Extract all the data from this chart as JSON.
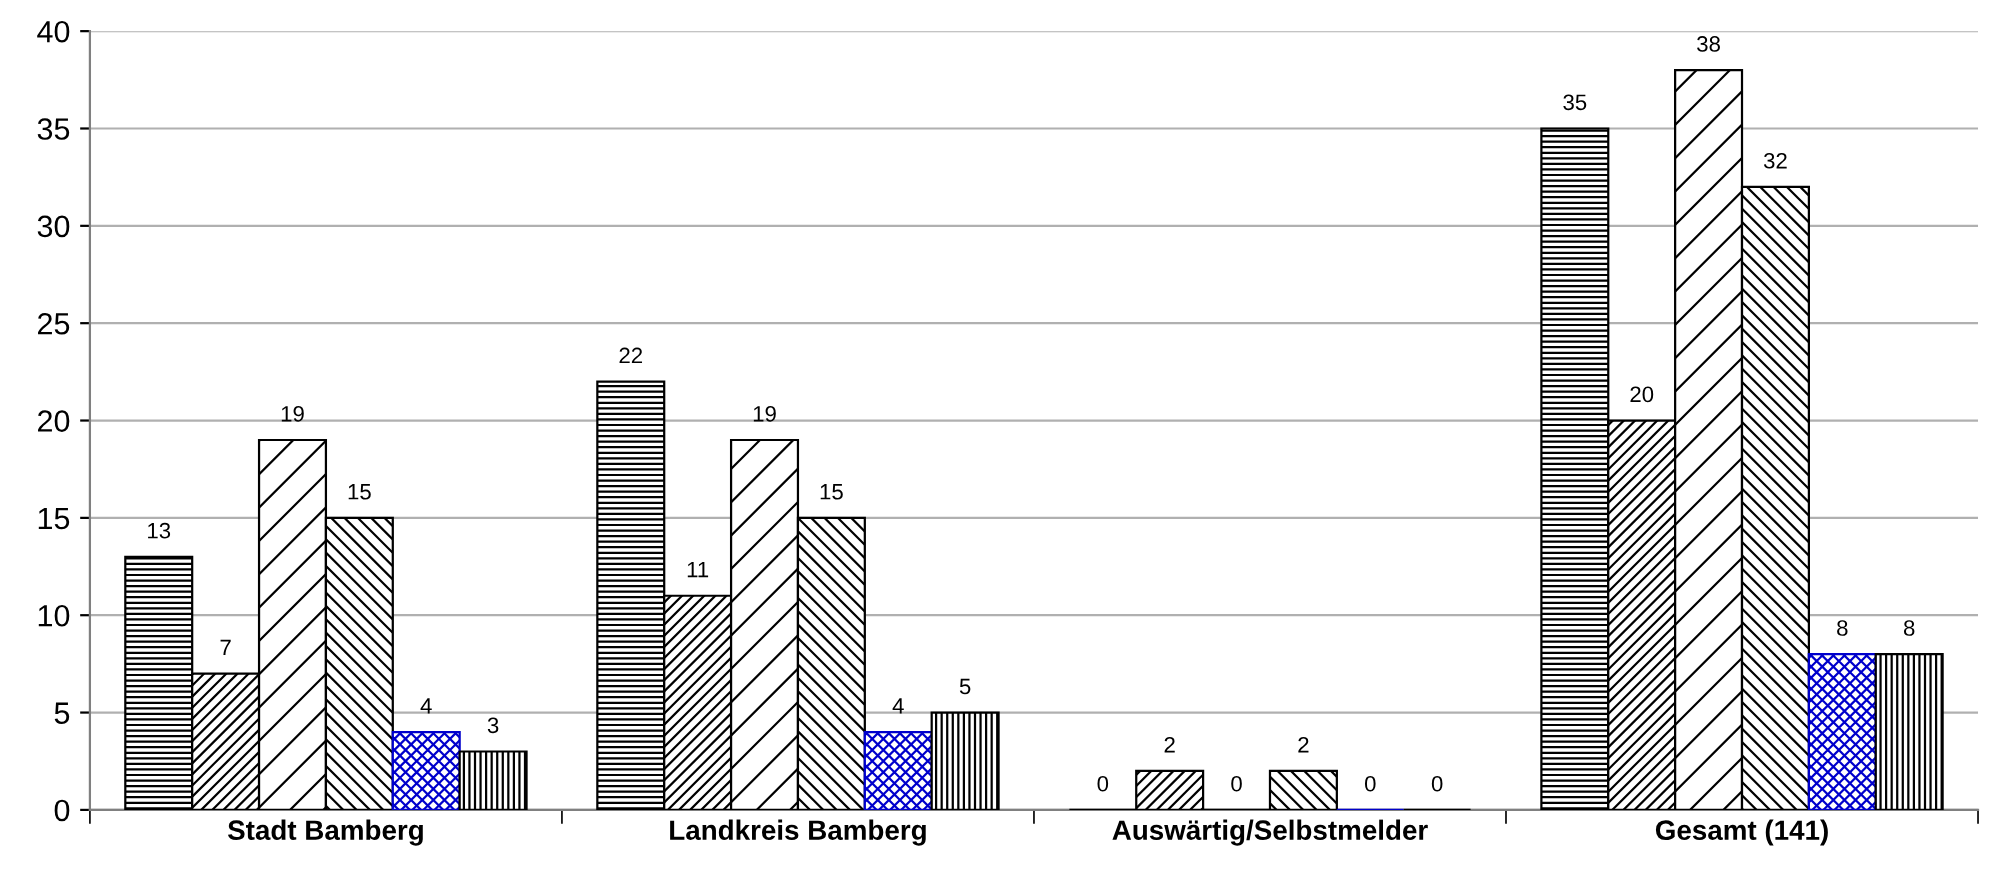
{
  "chart_data": {
    "type": "bar",
    "categories": [
      "Stadt Bamberg",
      "Landkreis Bamberg",
      "Auswärtig/Selbstmelder",
      "Gesamt (141)"
    ],
    "series": [
      {
        "color": "#000000",
        "values": [
          13,
          22,
          0,
          35
        ]
      },
      {
        "color": "#000000",
        "values": [
          7,
          11,
          2,
          20
        ]
      },
      {
        "color": "#000000",
        "values": [
          19,
          19,
          0,
          38
        ]
      },
      {
        "color": "#000000",
        "values": [
          15,
          15,
          2,
          32
        ]
      },
      {
        "color": "#0000cc",
        "values": [
          4,
          4,
          0,
          8
        ]
      },
      {
        "color": "#000000",
        "values": [
          3,
          5,
          0,
          8
        ]
      }
    ],
    "ylim": [
      0,
      40
    ],
    "yticks": [
      0,
      5,
      10,
      15,
      20,
      25,
      30,
      35,
      40
    ],
    "grid": "y",
    "data_labels": true,
    "legend": false
  }
}
